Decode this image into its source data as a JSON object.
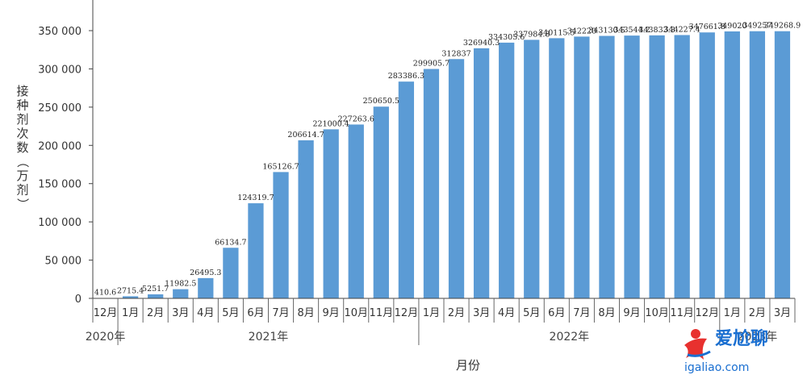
{
  "chart_data": {
    "type": "bar",
    "categories": [
      "12月",
      "1月",
      "2月",
      "3月",
      "4月",
      "5月",
      "6月",
      "7月",
      "8月",
      "9月",
      "10月",
      "11月",
      "12月",
      "1月",
      "2月",
      "3月",
      "4月",
      "5月",
      "6月",
      "7月",
      "8月",
      "9月",
      "10月",
      "11月",
      "12月",
      "1月",
      "2月",
      "3月"
    ],
    "values": [
      410.6,
      2715.4,
      5251.7,
      11982.5,
      26495.3,
      66134.7,
      124319.7,
      165126.7,
      206614.7,
      221000.4,
      227263.6,
      250650.5,
      283386.3,
      299905.7,
      312837,
      326940.3,
      334305.6,
      337984.8,
      340115.5,
      342220,
      343130.5,
      343544.2,
      343833.3,
      344227.4,
      347661.8,
      349020,
      349257,
      349268.9
    ],
    "data_labels": [
      "410.6",
      "2715.4",
      "5251.7",
      "11982.5",
      "26495.3",
      "66134.7",
      "124319.7",
      "165126.7",
      "206614.7",
      "221000.4",
      "227263.6",
      "250650.5",
      "283386.3",
      "299905.7",
      "312837",
      "326940.3",
      "334305.6",
      "337984.8",
      "340115.5",
      "342220",
      "343130.5",
      "343544.2",
      "343833.3",
      "344227.4",
      "347661.8",
      "349020",
      "349257",
      "349268.9"
    ],
    "year_groups": [
      {
        "label": "2020年",
        "start": 0,
        "end": 0
      },
      {
        "label": "2021年",
        "start": 1,
        "end": 12
      },
      {
        "label": "2022年",
        "start": 13,
        "end": 24
      },
      {
        "label": "2023年",
        "start": 25,
        "end": 27
      }
    ],
    "yticks": [
      0,
      50000,
      100000,
      150000,
      200000,
      250000,
      300000,
      350000
    ],
    "ytick_labels": [
      "0",
      "50 000",
      "100 000",
      "150 000",
      "200 000",
      "250 000",
      "300 000",
      "350 000"
    ],
    "ylim": [
      0,
      350000
    ],
    "title": "",
    "xlabel": "月份",
    "ylabel": "接种剂次数（万剂）",
    "grid": false,
    "bar_color": "#5b9bd5"
  },
  "watermark": {
    "brand": "爱尬聊",
    "url": "igaliao.com",
    "logo_color": "#e8312f",
    "text_color": "#1a6fd1"
  }
}
